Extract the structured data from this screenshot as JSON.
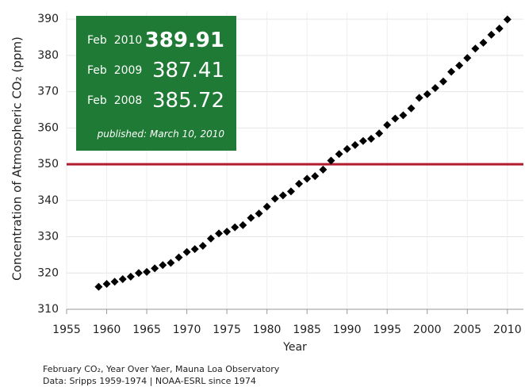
{
  "chart_data": {
    "type": "scatter",
    "y_label": "Concentration of Atmospheric CO₂ (ppm)",
    "x_label": "Year",
    "x": [
      1959,
      1960,
      1961,
      1962,
      1963,
      1964,
      1965,
      1966,
      1967,
      1968,
      1969,
      1970,
      1971,
      1972,
      1973,
      1974,
      1975,
      1976,
      1977,
      1978,
      1979,
      1980,
      1981,
      1982,
      1983,
      1984,
      1985,
      1986,
      1987,
      1988,
      1989,
      1990,
      1991,
      1992,
      1993,
      1994,
      1995,
      1996,
      1997,
      1998,
      1999,
      2000,
      2001,
      2002,
      2003,
      2004,
      2005,
      2006,
      2007,
      2008,
      2009,
      2010
    ],
    "values": [
      316.2,
      317.0,
      317.6,
      318.3,
      319.0,
      320.0,
      320.3,
      321.3,
      322.2,
      322.8,
      324.3,
      325.8,
      326.6,
      327.5,
      329.5,
      330.9,
      331.4,
      332.6,
      333.2,
      335.2,
      336.4,
      338.3,
      340.5,
      341.4,
      342.5,
      344.6,
      346.0,
      346.7,
      348.5,
      351.0,
      352.8,
      354.2,
      355.3,
      356.4,
      357.0,
      358.5,
      360.8,
      362.6,
      363.5,
      365.4,
      368.3,
      369.3,
      371.0,
      372.8,
      375.5,
      377.2,
      379.3,
      381.9,
      383.5,
      385.72,
      387.41,
      389.91
    ],
    "color": "#000000",
    "xlim": [
      1955,
      2012
    ],
    "ylim": [
      310,
      392
    ],
    "xticks": [
      1955,
      1960,
      1965,
      1970,
      1975,
      1980,
      1985,
      1990,
      1995,
      2000,
      2005,
      2010
    ],
    "yticks": [
      310,
      320,
      330,
      340,
      350,
      360,
      370,
      380,
      390
    ],
    "grid": true,
    "reference_line": {
      "value": 350,
      "color": "#b01c2e"
    },
    "info_box": {
      "color": "#1e7a34",
      "rows": [
        {
          "label": "Feb  2010",
          "value": "389.91"
        },
        {
          "label": "Feb  2009",
          "value": "387.41"
        },
        {
          "label": "Feb  2008",
          "value": "385.72"
        }
      ],
      "note": "published: March 10, 2010"
    },
    "caption": [
      "February CO₂, Year Over Yaer, Mauna Loa Observatory",
      "Data: Sripps 1959-1974 | NOAA-ESRL since 1974"
    ]
  }
}
